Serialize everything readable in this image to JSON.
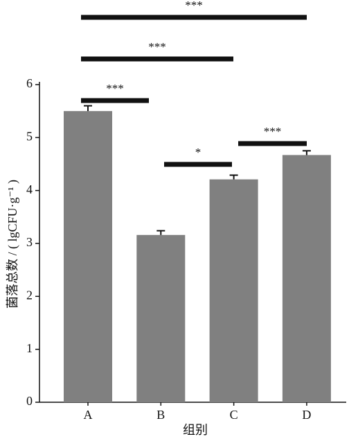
{
  "chart_data": {
    "type": "bar",
    "categories": [
      "A",
      "B",
      "C",
      "D"
    ],
    "values": [
      5.5,
      3.16,
      4.21,
      4.67
    ],
    "errors": [
      0.1,
      0.08,
      0.08,
      0.08
    ],
    "color": "#808080",
    "ylim": [
      0,
      6
    ],
    "yticks": [
      0,
      1,
      2,
      3,
      4,
      5,
      6
    ],
    "xlabel": "组别",
    "ylabel": "菌落总数 / ( lgCFU·g⁻¹ )",
    "annotations": [
      "***",
      "*",
      "***",
      "***",
      "***"
    ]
  }
}
